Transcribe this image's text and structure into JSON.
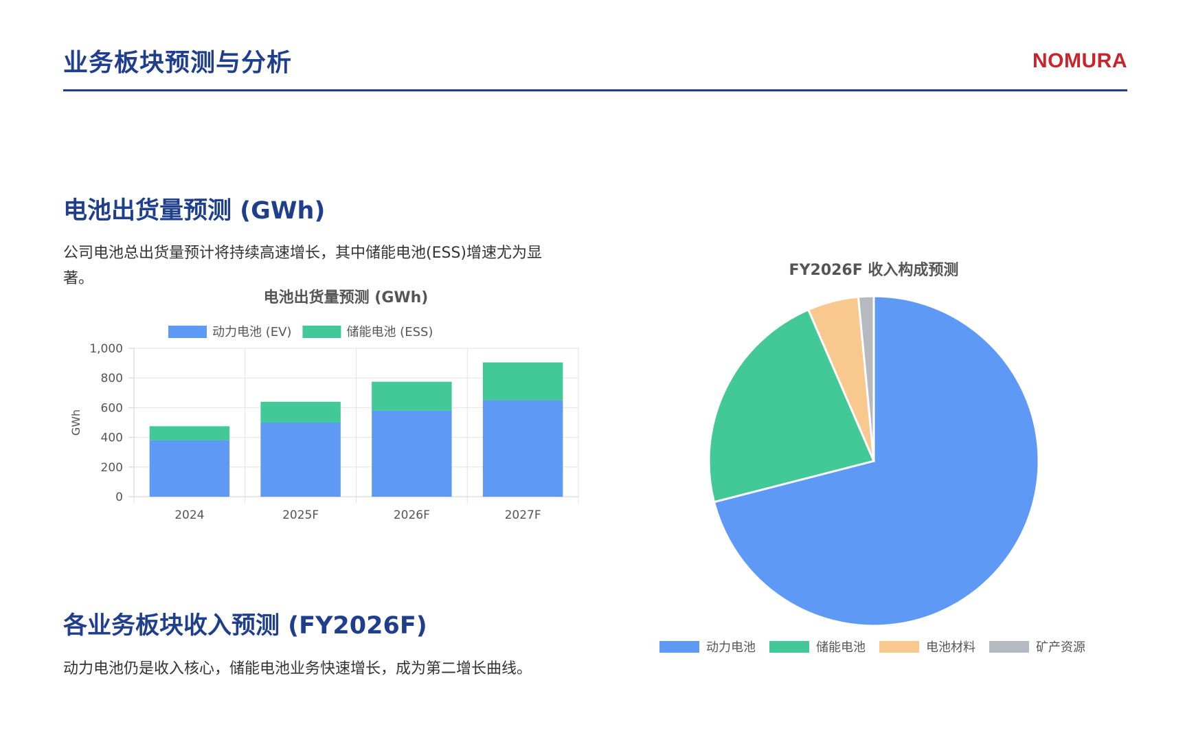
{
  "header": {
    "title": "业务板块预测与分析",
    "brand": "NOMURA",
    "accent": "#1f3e8c",
    "brand_color": "#c8242b"
  },
  "sections": [
    {
      "title": "电池出货量预测 (GWh)",
      "description": "公司电池总出货量预计将持续高速增长，其中储能电池(ESS)增速尤为显著。"
    },
    {
      "title": "各业务板块收入预测 (FY2026F)",
      "description": "动力电池仍是收入核心，储能电池业务快速增长，成为第二增长曲线。"
    }
  ],
  "chart_data": [
    {
      "type": "bar",
      "stacked": true,
      "title": "电池出货量预测 (GWh)",
      "ylabel": "GWh",
      "xlabel": "",
      "categories": [
        "2024",
        "2025F",
        "2026F",
        "2027F"
      ],
      "series": [
        {
          "name": "动力电池 (EV)",
          "values": [
            380,
            500,
            580,
            650
          ],
          "color": "#5f99f6"
        },
        {
          "name": "储能电池 (ESS)",
          "values": [
            95,
            140,
            195,
            255
          ],
          "color": "#43c898"
        }
      ],
      "ylim": [
        0,
        1000
      ],
      "yticks": [
        "0",
        "200",
        "400",
        "600",
        "800",
        "1,000"
      ],
      "grid": true,
      "legend": "top"
    },
    {
      "type": "pie",
      "title": "FY2026F 收入构成预测",
      "labels": [
        "动力电池",
        "储能电池",
        "电池材料",
        "矿产资源"
      ],
      "values": [
        71,
        22.5,
        5,
        1.5
      ],
      "colors": [
        "#5f99f6",
        "#43c898",
        "#f9c88f",
        "#b5b9c2"
      ],
      "legend": "bottom"
    }
  ]
}
